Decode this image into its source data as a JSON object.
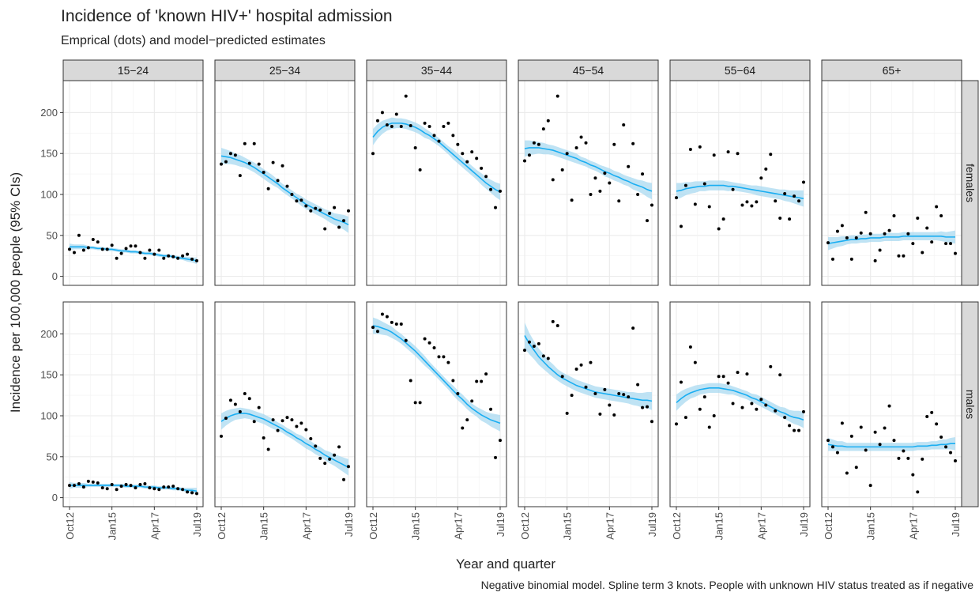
{
  "chart_data": {
    "type": "scatter",
    "title": "Incidence of 'known HIV+' hospital admission",
    "subtitle": "Emprical (dots) and model−predicted estimates",
    "x_label": "Year and quarter",
    "y_label": "Incidence per 100,000 people (95% CIs)",
    "caption": "Negative binomial model. Spline term 3 knots. People with unknown HIV status treated as if negative",
    "categories": [
      "Oct12",
      null,
      null,
      null,
      null,
      null,
      null,
      null,
      null,
      "Jan15",
      null,
      null,
      null,
      null,
      null,
      null,
      null,
      null,
      "Apr17",
      null,
      null,
      null,
      null,
      null,
      null,
      null,
      null,
      "Jul19"
    ],
    "columns": [
      "15−24",
      "25−34",
      "35−44",
      "45−54",
      "55−64",
      "65+"
    ],
    "rows": [
      "females",
      "males"
    ],
    "ylim": [
      -11,
      239
    ],
    "yticks": [
      0,
      50,
      100,
      150,
      200
    ],
    "grid": true,
    "point_color": "#000000",
    "fit_color": "#1aaef2",
    "ci_color": "#a9d9f0",
    "panels": [
      [
        {
          "values": [
            33,
            29,
            50,
            32,
            35,
            45,
            42,
            33,
            33,
            38,
            22,
            28,
            34,
            37,
            37,
            29,
            22,
            32,
            27,
            32,
            22,
            25,
            24,
            22,
            25,
            27,
            21,
            19
          ],
          "fit": [
            36,
            36,
            36,
            36,
            35,
            35,
            34,
            34,
            33,
            33,
            32,
            31,
            31,
            30,
            30,
            29,
            28,
            28,
            27,
            26,
            25,
            25,
            24,
            23,
            22,
            21,
            20,
            19
          ],
          "ci": [
            4,
            3,
            3,
            3,
            2,
            2,
            2,
            2,
            2,
            2,
            2,
            2,
            2,
            2,
            2,
            2,
            2,
            2,
            2,
            2,
            2,
            2,
            2,
            2,
            2,
            3,
            3,
            4
          ]
        },
        {
          "values": [
            137,
            140,
            150,
            148,
            123,
            162,
            138,
            162,
            137,
            127,
            107,
            139,
            117,
            135,
            110,
            100,
            92,
            93,
            86,
            80,
            83,
            81,
            58,
            77,
            84,
            60,
            68,
            80
          ],
          "fit": [
            147,
            146,
            145,
            143,
            141,
            139,
            136,
            133,
            129,
            125,
            121,
            117,
            113,
            108,
            104,
            100,
            96,
            92,
            88,
            85,
            82,
            79,
            76,
            73,
            70,
            68,
            66,
            63
          ],
          "ci": [
            10,
            9,
            8,
            7,
            7,
            6,
            6,
            6,
            6,
            6,
            6,
            6,
            5,
            5,
            5,
            5,
            5,
            6,
            6,
            6,
            6,
            6,
            6,
            7,
            7,
            8,
            9,
            10
          ]
        },
        {
          "values": [
            150,
            190,
            200,
            185,
            183,
            198,
            183,
            220,
            184,
            157,
            130,
            187,
            183,
            172,
            165,
            183,
            187,
            172,
            161,
            150,
            140,
            152,
            144,
            132,
            122,
            106,
            84,
            104
          ],
          "fit": [
            170,
            177,
            182,
            185,
            187,
            187,
            187,
            186,
            184,
            182,
            179,
            175,
            172,
            168,
            164,
            159,
            154,
            149,
            144,
            139,
            134,
            129,
            124,
            119,
            114,
            110,
            106,
            103
          ],
          "ci": [
            10,
            9,
            8,
            7,
            7,
            6,
            6,
            6,
            6,
            6,
            6,
            6,
            5,
            5,
            5,
            5,
            5,
            6,
            6,
            6,
            6,
            6,
            6,
            7,
            7,
            8,
            9,
            10
          ]
        },
        {
          "values": [
            141,
            148,
            163,
            161,
            180,
            190,
            118,
            220,
            130,
            150,
            93,
            157,
            170,
            163,
            100,
            120,
            104,
            126,
            114,
            161,
            92,
            185,
            134,
            162,
            100,
            125,
            68,
            87
          ],
          "fit": [
            156,
            157,
            157,
            157,
            156,
            155,
            154,
            152,
            150,
            148,
            146,
            144,
            141,
            139,
            136,
            134,
            131,
            128,
            126,
            123,
            121,
            118,
            116,
            113,
            111,
            109,
            106,
            104
          ],
          "ci": [
            10,
            9,
            8,
            7,
            7,
            6,
            6,
            6,
            6,
            6,
            6,
            6,
            5,
            5,
            5,
            5,
            5,
            6,
            6,
            6,
            6,
            6,
            6,
            7,
            7,
            8,
            9,
            10
          ]
        },
        {
          "values": [
            96,
            61,
            111,
            155,
            88,
            158,
            113,
            85,
            148,
            58,
            70,
            152,
            106,
            150,
            87,
            91,
            86,
            91,
            120,
            131,
            149,
            92,
            71,
            101,
            70,
            98,
            92,
            115
          ],
          "fit": [
            104,
            105,
            107,
            108,
            109,
            110,
            110,
            111,
            111,
            111,
            111,
            110,
            110,
            109,
            108,
            107,
            106,
            105,
            104,
            103,
            102,
            101,
            100,
            99,
            98,
            97,
            96,
            95
          ],
          "ci": [
            10,
            9,
            8,
            7,
            7,
            6,
            6,
            6,
            6,
            6,
            6,
            6,
            5,
            5,
            5,
            5,
            5,
            6,
            6,
            6,
            6,
            6,
            6,
            7,
            7,
            8,
            9,
            10
          ]
        },
        {
          "values": [
            41,
            21,
            55,
            62,
            47,
            21,
            47,
            53,
            78,
            52,
            19,
            32,
            52,
            56,
            74,
            25,
            25,
            52,
            40,
            71,
            29,
            59,
            42,
            85,
            74,
            40,
            40,
            28
          ],
          "fit": [
            40,
            41,
            42,
            43,
            44,
            45,
            45,
            46,
            46,
            47,
            47,
            47,
            48,
            48,
            48,
            48,
            49,
            49,
            49,
            49,
            49,
            49,
            49,
            49,
            49,
            48,
            48,
            48
          ],
          "ci": [
            8,
            7,
            6,
            6,
            5,
            5,
            5,
            5,
            5,
            5,
            5,
            5,
            5,
            5,
            5,
            5,
            5,
            5,
            5,
            5,
            5,
            5,
            5,
            5,
            6,
            6,
            7,
            8
          ]
        }
      ],
      [
        {
          "values": [
            15,
            15,
            17,
            13,
            20,
            19,
            18,
            12,
            11,
            16,
            10,
            14,
            16,
            15,
            12,
            16,
            17,
            12,
            11,
            10,
            13,
            13,
            14,
            11,
            10,
            7,
            6,
            5
          ],
          "fit": [
            15,
            15,
            15,
            15,
            15,
            15,
            15,
            15,
            15,
            15,
            15,
            15,
            14,
            14,
            14,
            14,
            13,
            13,
            13,
            12,
            12,
            12,
            11,
            11,
            10,
            9,
            9,
            8
          ],
          "ci": [
            4,
            3,
            3,
            3,
            2,
            2,
            2,
            2,
            2,
            2,
            2,
            2,
            2,
            2,
            2,
            2,
            2,
            2,
            2,
            2,
            2,
            2,
            2,
            2,
            2,
            3,
            3,
            4
          ]
        },
        {
          "values": [
            75,
            97,
            119,
            114,
            105,
            127,
            121,
            93,
            110,
            73,
            59,
            95,
            82,
            94,
            98,
            95,
            87,
            91,
            83,
            72,
            63,
            48,
            42,
            47,
            52,
            62,
            22,
            38
          ],
          "fit": [
            93,
            97,
            100,
            102,
            103,
            103,
            102,
            100,
            98,
            96,
            93,
            90,
            87,
            84,
            80,
            77,
            73,
            70,
            66,
            63,
            59,
            56,
            52,
            49,
            46,
            43,
            40,
            37
          ],
          "ci": [
            10,
            9,
            8,
            7,
            7,
            6,
            6,
            6,
            6,
            6,
            6,
            6,
            5,
            5,
            5,
            5,
            5,
            6,
            6,
            6,
            6,
            6,
            6,
            7,
            7,
            8,
            9,
            10
          ]
        },
        {
          "values": [
            208,
            203,
            224,
            221,
            214,
            212,
            212,
            192,
            143,
            116,
            116,
            194,
            189,
            183,
            172,
            172,
            165,
            143,
            127,
            85,
            95,
            118,
            142,
            142,
            151,
            108,
            49,
            70
          ],
          "fit": [
            210,
            209,
            207,
            205,
            202,
            198,
            194,
            189,
            184,
            179,
            173,
            167,
            161,
            155,
            149,
            143,
            137,
            131,
            125,
            120,
            114,
            109,
            105,
            101,
            98,
            95,
            93,
            91
          ],
          "ci": [
            10,
            9,
            8,
            7,
            7,
            6,
            6,
            6,
            6,
            6,
            6,
            6,
            5,
            5,
            5,
            5,
            5,
            6,
            6,
            6,
            6,
            6,
            6,
            7,
            7,
            8,
            9,
            10
          ]
        },
        {
          "values": [
            180,
            190,
            185,
            188,
            173,
            170,
            215,
            210,
            148,
            103,
            125,
            157,
            162,
            135,
            165,
            127,
            102,
            132,
            113,
            101,
            127,
            126,
            123,
            207,
            138,
            110,
            111,
            93
          ],
          "fit": [
            198,
            188,
            180,
            172,
            166,
            160,
            155,
            150,
            146,
            143,
            140,
            137,
            135,
            133,
            131,
            129,
            128,
            127,
            126,
            125,
            124,
            123,
            122,
            121,
            120,
            119,
            119,
            118
          ],
          "ci": [
            16,
            13,
            11,
            10,
            9,
            8,
            8,
            7,
            7,
            7,
            7,
            7,
            7,
            7,
            7,
            7,
            7,
            7,
            7,
            7,
            7,
            7,
            7,
            8,
            8,
            9,
            10,
            11
          ]
        },
        {
          "values": [
            90,
            141,
            98,
            184,
            165,
            108,
            123,
            86,
            100,
            148,
            148,
            140,
            115,
            153,
            110,
            151,
            115,
            108,
            120,
            113,
            160,
            106,
            150,
            98,
            88,
            82,
            82,
            105
          ],
          "fit": [
            116,
            121,
            125,
            128,
            130,
            132,
            133,
            134,
            134,
            134,
            133,
            132,
            131,
            129,
            127,
            125,
            122,
            120,
            117,
            114,
            111,
            108,
            105,
            103,
            100,
            98,
            97,
            95
          ],
          "ci": [
            10,
            9,
            8,
            7,
            7,
            6,
            6,
            6,
            6,
            6,
            6,
            6,
            5,
            5,
            5,
            5,
            5,
            6,
            6,
            6,
            6,
            6,
            6,
            7,
            7,
            8,
            9,
            10
          ]
        },
        {
          "values": [
            70,
            62,
            55,
            91,
            30,
            75,
            37,
            86,
            58,
            15,
            80,
            65,
            85,
            112,
            70,
            48,
            57,
            48,
            28,
            7,
            47,
            99,
            104,
            90,
            74,
            62,
            55,
            45
          ],
          "fit": [
            65,
            64,
            63,
            63,
            62,
            62,
            62,
            62,
            62,
            62,
            62,
            62,
            62,
            62,
            62,
            62,
            62,
            62,
            62,
            63,
            63,
            63,
            64,
            64,
            65,
            65,
            66,
            66
          ],
          "ci": [
            8,
            7,
            6,
            6,
            5,
            5,
            5,
            5,
            5,
            5,
            5,
            5,
            5,
            5,
            5,
            5,
            5,
            5,
            5,
            5,
            5,
            5,
            5,
            5,
            6,
            6,
            7,
            8
          ]
        }
      ]
    ]
  }
}
